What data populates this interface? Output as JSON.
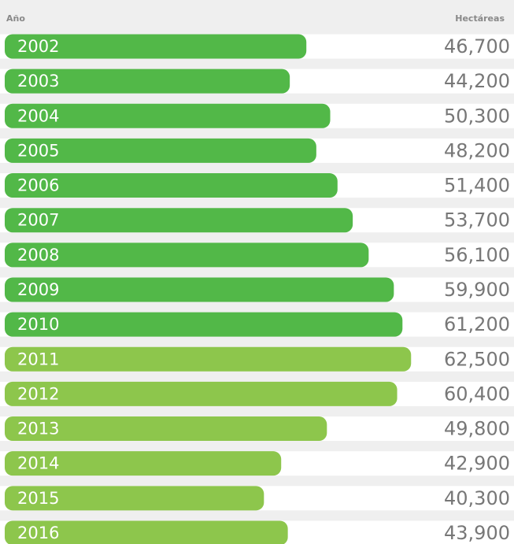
{
  "chart_data": {
    "type": "bar",
    "orientation": "horizontal",
    "xlabel": "Hectáreas",
    "ylabel": "Año",
    "categories": [
      "2002",
      "2003",
      "2004",
      "2005",
      "2006",
      "2007",
      "2008",
      "2009",
      "2010",
      "2011",
      "2012",
      "2013",
      "2014",
      "2015",
      "2016"
    ],
    "values": [
      46700,
      44200,
      50300,
      48200,
      51400,
      53700,
      56100,
      59900,
      61200,
      62500,
      60400,
      49800,
      42900,
      40300,
      43900
    ],
    "value_labels": [
      "46,700",
      "44,200",
      "50,300",
      "48,200",
      "51,400",
      "53,700",
      "56,100",
      "59,900",
      "61,200",
      "62,500",
      "60,400",
      "49,800",
      "42,900",
      "40,300",
      "43,900"
    ],
    "colors": [
      "#52b848",
      "#52b848",
      "#52b848",
      "#52b848",
      "#52b848",
      "#52b848",
      "#52b848",
      "#52b848",
      "#52b848",
      "#8dc64c",
      "#8dc64c",
      "#8dc64c",
      "#8dc64c",
      "#8dc64c",
      "#8dc64c"
    ]
  }
}
